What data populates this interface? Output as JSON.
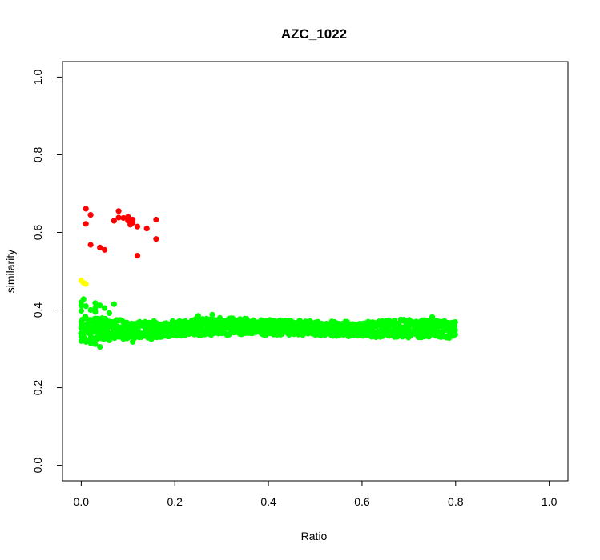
{
  "chart_data": {
    "type": "scatter",
    "title": "AZC_1022",
    "xlabel": "Ratio",
    "ylabel": "similarity",
    "xlim": [
      -0.04,
      1.04
    ],
    "ylim": [
      -0.04,
      1.04
    ],
    "xticks": [
      0.0,
      0.2,
      0.4,
      0.6,
      0.8,
      1.0
    ],
    "yticks": [
      0.0,
      0.2,
      0.4,
      0.6,
      0.8,
      1.0
    ],
    "xtick_labels": [
      "0.0",
      "0.2",
      "0.4",
      "0.6",
      "0.8",
      "1.0"
    ],
    "ytick_labels": [
      "0.0",
      "0.2",
      "0.4",
      "0.6",
      "0.8",
      "1.0"
    ],
    "grid": false,
    "colors": {
      "red": "#ff0000",
      "yellow": "#ffff00",
      "green": "#00ff00"
    },
    "series": [
      {
        "color": "#ff0000",
        "points": [
          [
            0.01,
            0.661
          ],
          [
            0.02,
            0.645
          ],
          [
            0.01,
            0.622
          ],
          [
            0.02,
            0.568
          ],
          [
            0.04,
            0.561
          ],
          [
            0.05,
            0.555
          ],
          [
            0.07,
            0.63
          ],
          [
            0.08,
            0.655
          ],
          [
            0.08,
            0.638
          ],
          [
            0.09,
            0.637
          ],
          [
            0.1,
            0.63
          ],
          [
            0.1,
            0.64
          ],
          [
            0.11,
            0.633
          ],
          [
            0.11,
            0.625
          ],
          [
            0.12,
            0.615
          ],
          [
            0.12,
            0.54
          ],
          [
            0.14,
            0.61
          ],
          [
            0.16,
            0.633
          ],
          [
            0.16,
            0.583
          ],
          [
            0.105,
            0.62
          ]
        ]
      },
      {
        "color": "#ffff00",
        "points": [
          [
            0.0,
            0.476
          ],
          [
            0.005,
            0.47
          ],
          [
            0.01,
            0.467
          ]
        ]
      },
      {
        "color": "#00ff00",
        "band": {
          "x_from": 0.0,
          "x_to": 0.8,
          "lower": [
            [
              0.0,
              0.315
            ],
            [
              0.05,
              0.325
            ],
            [
              0.1,
              0.325
            ],
            [
              0.2,
              0.332
            ],
            [
              0.3,
              0.335
            ],
            [
              0.4,
              0.335
            ],
            [
              0.5,
              0.335
            ],
            [
              0.6,
              0.33
            ],
            [
              0.7,
              0.328
            ],
            [
              0.8,
              0.328
            ]
          ],
          "upper": [
            [
              0.0,
              0.385
            ],
            [
              0.05,
              0.38
            ],
            [
              0.1,
              0.372
            ],
            [
              0.2,
              0.372
            ],
            [
              0.3,
              0.382
            ],
            [
              0.4,
              0.375
            ],
            [
              0.5,
              0.372
            ],
            [
              0.6,
              0.37
            ],
            [
              0.7,
              0.378
            ],
            [
              0.8,
              0.372
            ]
          ]
        },
        "points": [
          [
            0.0,
            0.42
          ],
          [
            0.005,
            0.428
          ],
          [
            0.0,
            0.412
          ],
          [
            0.01,
            0.41
          ],
          [
            0.0,
            0.398
          ],
          [
            0.02,
            0.4
          ],
          [
            0.03,
            0.418
          ],
          [
            0.03,
            0.405
          ],
          [
            0.04,
            0.412
          ],
          [
            0.05,
            0.405
          ],
          [
            0.07,
            0.415
          ],
          [
            0.03,
            0.395
          ],
          [
            0.06,
            0.392
          ],
          [
            0.0,
            0.32
          ],
          [
            0.01,
            0.318
          ],
          [
            0.02,
            0.315
          ],
          [
            0.04,
            0.305
          ],
          [
            0.03,
            0.312
          ],
          [
            0.0,
            0.332
          ],
          [
            0.02,
            0.328
          ],
          [
            0.06,
            0.322
          ],
          [
            0.11,
            0.318
          ],
          [
            0.15,
            0.325
          ],
          [
            0.28,
            0.388
          ],
          [
            0.25,
            0.385
          ],
          [
            0.75,
            0.382
          ],
          [
            0.0,
            0.355
          ],
          [
            0.0,
            0.37
          ],
          [
            0.01,
            0.362
          ],
          [
            0.04,
            0.35
          ],
          [
            0.08,
            0.343
          ]
        ]
      }
    ]
  }
}
